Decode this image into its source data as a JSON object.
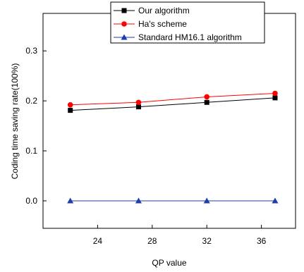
{
  "chart_data": {
    "type": "line",
    "xlabel": "QP value",
    "ylabel": "Coding time saving rate(100%)",
    "xlim": [
      20,
      38.5
    ],
    "ylim": [
      -0.055,
      0.375
    ],
    "x_ticks": [
      24,
      28,
      32,
      36
    ],
    "y_ticks": [
      0.0,
      0.1,
      0.2,
      0.3
    ],
    "x_tick_labels": [
      "24",
      "28",
      "32",
      "36"
    ],
    "y_tick_labels": [
      "0.0",
      "0.1",
      "0.2",
      "0.3"
    ],
    "legend_position": "top-right",
    "x": [
      22,
      27,
      32,
      37
    ],
    "series": [
      {
        "name": "Our algorithm",
        "values": [
          0.181,
          0.188,
          0.197,
          0.206
        ],
        "color": "#000000",
        "marker": "square"
      },
      {
        "name": "Ha's scheme",
        "values": [
          0.192,
          0.197,
          0.208,
          0.215
        ],
        "color": "#ff0000",
        "marker": "circle"
      },
      {
        "name": "Standard HM16.1 algorithm",
        "values": [
          0.0,
          0.0,
          0.0,
          0.0
        ],
        "color": "#1f3fa8",
        "marker": "triangle"
      }
    ]
  }
}
